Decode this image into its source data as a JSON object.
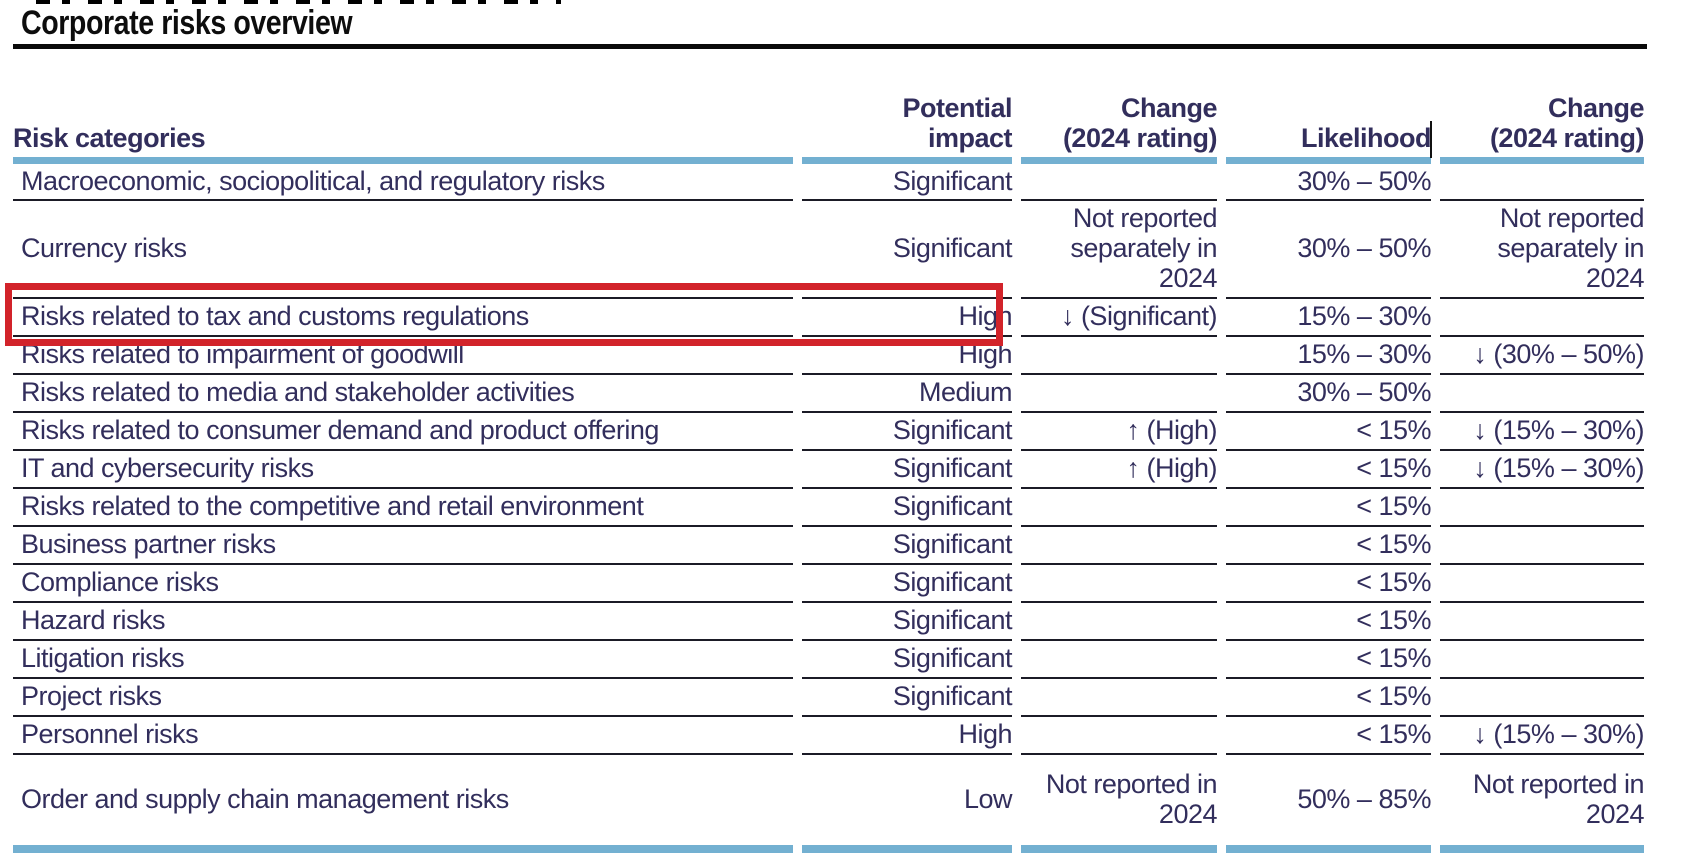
{
  "page": {
    "title": "Corporate risks overview"
  },
  "colors": {
    "text_navy": "#322e5c",
    "accent_blue": "#73b0d1",
    "rule_dark": "#1b1b26",
    "highlight_red": "#d2232a",
    "title_black": "#0d0d0d"
  },
  "table": {
    "columns": [
      {
        "key": "category",
        "label": "Risk categories"
      },
      {
        "key": "impact",
        "label": "Potential\nimpact"
      },
      {
        "key": "impact_change",
        "label": "Change\n(2024 rating)"
      },
      {
        "key": "likelihood",
        "label": "Likelihood"
      },
      {
        "key": "likelihood_change",
        "label": "Change\n(2024 rating)"
      }
    ],
    "rows": [
      {
        "category": "Macroeconomic, sociopolitical, and regulatory risks",
        "impact": "Significant",
        "impact_change": "",
        "likelihood": "30% – 50%",
        "likelihood_change": "",
        "highlighted": false,
        "tall": false
      },
      {
        "category": "Currency risks",
        "impact": "Significant",
        "impact_change": "Not reported\nseparately in\n2024",
        "likelihood": "30% – 50%",
        "likelihood_change": "Not reported\nseparately in\n2024",
        "highlighted": false,
        "tall": true
      },
      {
        "category": "Risks related to tax and customs regulations",
        "impact": "High",
        "impact_change": "↓ (Significant)",
        "likelihood": "15% – 30%",
        "likelihood_change": "",
        "highlighted": true,
        "tall": false
      },
      {
        "category": "Risks related to impairment of goodwill",
        "impact": "High",
        "impact_change": "",
        "likelihood": "15% – 30%",
        "likelihood_change": "↓ (30% – 50%)",
        "highlighted": false,
        "tall": false
      },
      {
        "category": "Risks related to media and stakeholder activities",
        "impact": "Medium",
        "impact_change": "",
        "likelihood": "30% – 50%",
        "likelihood_change": "",
        "highlighted": false,
        "tall": false
      },
      {
        "category": "Risks related to consumer demand and product offering",
        "impact": "Significant",
        "impact_change": "↑ (High)",
        "likelihood": "< 15%",
        "likelihood_change": "↓ (15% – 30%)",
        "highlighted": false,
        "tall": false
      },
      {
        "category": "IT and cybersecurity risks",
        "impact": "Significant",
        "impact_change": "↑ (High)",
        "likelihood": "< 15%",
        "likelihood_change": "↓ (15% – 30%)",
        "highlighted": false,
        "tall": false
      },
      {
        "category": "Risks related to the competitive and retail environment",
        "impact": "Significant",
        "impact_change": "",
        "likelihood": "< 15%",
        "likelihood_change": "",
        "highlighted": false,
        "tall": false
      },
      {
        "category": "Business partner risks",
        "impact": "Significant",
        "impact_change": "",
        "likelihood": "< 15%",
        "likelihood_change": "",
        "highlighted": false,
        "tall": false
      },
      {
        "category": "Compliance risks",
        "impact": "Significant",
        "impact_change": "",
        "likelihood": "< 15%",
        "likelihood_change": "",
        "highlighted": false,
        "tall": false
      },
      {
        "category": "Hazard risks",
        "impact": "Significant",
        "impact_change": "",
        "likelihood": "< 15%",
        "likelihood_change": "",
        "highlighted": false,
        "tall": false
      },
      {
        "category": "Litigation risks",
        "impact": "Significant",
        "impact_change": "",
        "likelihood": "< 15%",
        "likelihood_change": "",
        "highlighted": false,
        "tall": false
      },
      {
        "category": "Project risks",
        "impact": "Significant",
        "impact_change": "",
        "likelihood": "< 15%",
        "likelihood_change": "",
        "highlighted": false,
        "tall": false
      },
      {
        "category": "Personnel risks",
        "impact": "High",
        "impact_change": "",
        "likelihood": "< 15%",
        "likelihood_change": "↓ (15% – 30%)",
        "highlighted": false,
        "tall": false
      },
      {
        "category": "Order and supply chain management risks",
        "impact": "Low",
        "impact_change": "Not reported in\n2024",
        "likelihood": "50% – 85%",
        "likelihood_change": "Not reported in\n2024",
        "highlighted": false,
        "tall": true
      }
    ]
  }
}
